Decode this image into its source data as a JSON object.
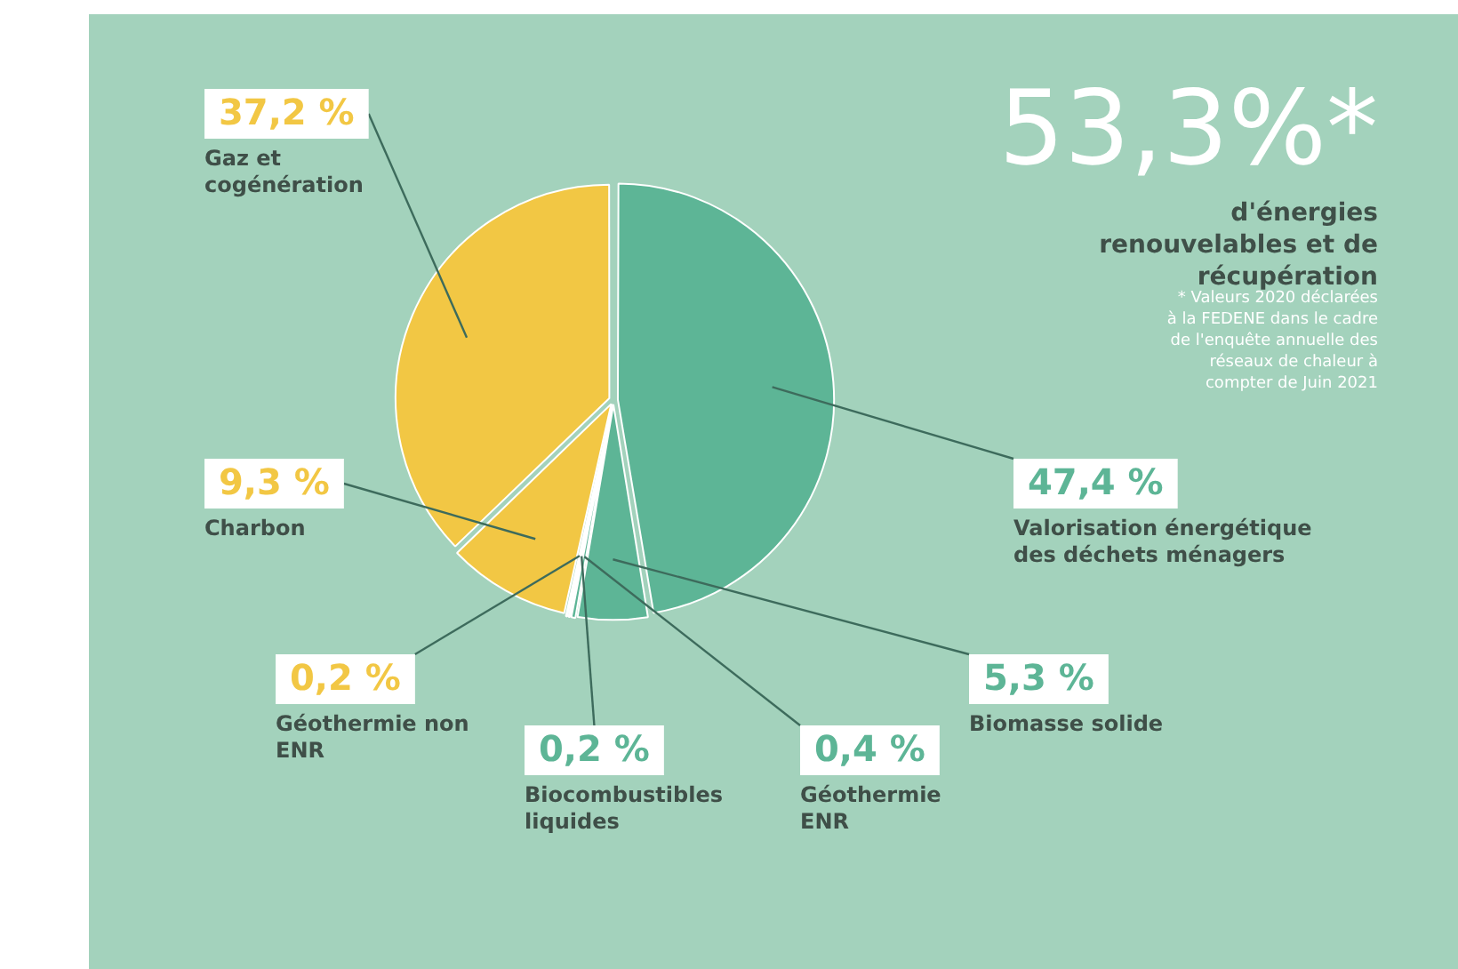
{
  "chart_data": {
    "type": "pie",
    "title": "53,3%*",
    "subtitle": "d'énergies renouvelables et de récupération",
    "categories": [
      "Valorisation énergétique des déchets ménagers",
      "Biomasse solide",
      "Géothermie ENR",
      "Biocombustibles liquides",
      "Géothermie non ENR",
      "Charbon",
      "Gaz et cogénération"
    ],
    "values": [
      47.4,
      5.3,
      0.4,
      0.2,
      0.2,
      9.3,
      37.2
    ],
    "colors": [
      "#5db596",
      "#5db596",
      "#5db596",
      "#5db596",
      "#f2c744",
      "#f2c744",
      "#f2c744"
    ],
    "value_labels": [
      "47,4 %",
      "5,3 %",
      "0,4 %",
      "0,2 %",
      "0,2 %",
      "9,3 %",
      "37,2 %"
    ],
    "annotations": [
      "* Valeurs 2020 déclarées à la FEDENE dans le cadre de l'enquête annuelle des réseaux de chaleur à compter de Juin 2021"
    ],
    "legend": false
  }
}
